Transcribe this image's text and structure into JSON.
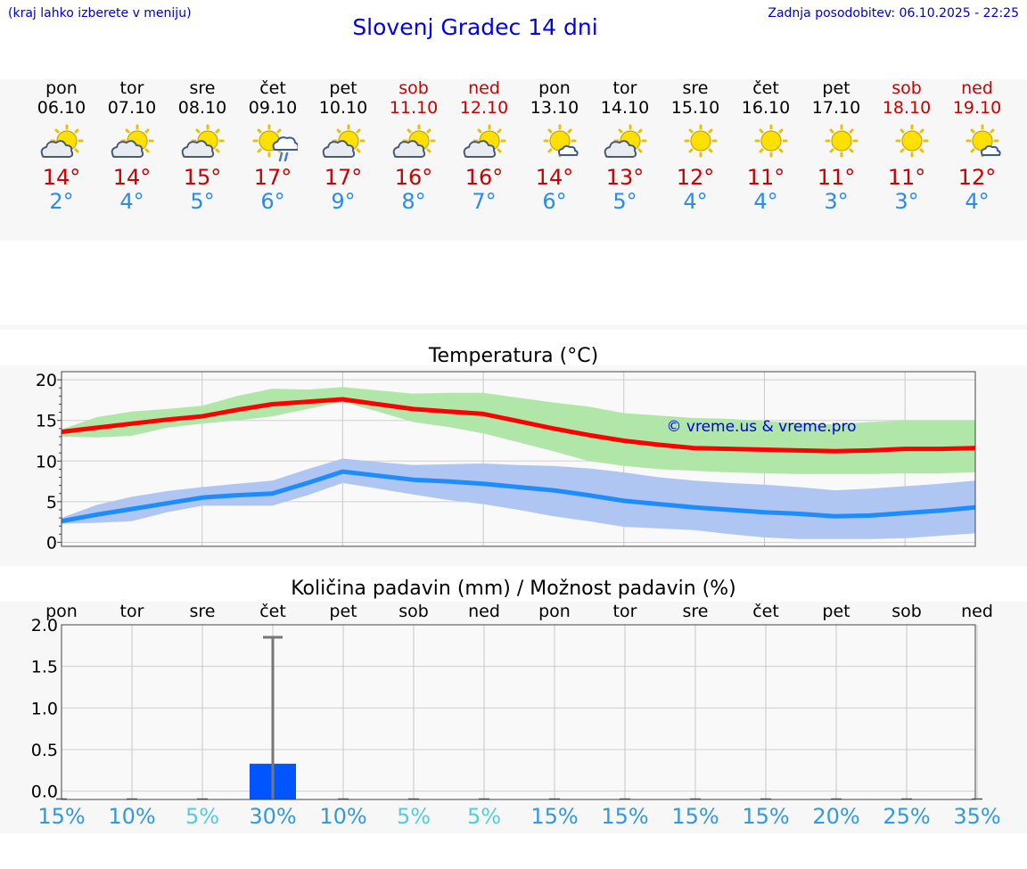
{
  "header": {
    "left_note": "(kraj lahko izberete v meniju)",
    "title": "Slovenj Gradec 14 dni",
    "updated": "Zadnja posodobitev: 06.10.2025 - 22:25"
  },
  "colors": {
    "weekend": "#cc0000",
    "max_temp": "#cc0000",
    "min_temp": "#2a8cea",
    "max_band": "#b0e6a8",
    "min_band": "#b0c6f2",
    "max_line": "#ff0000",
    "min_line": "#1e8cff",
    "rain_bar": "#0055ff"
  },
  "days": [
    {
      "name": "pon",
      "date": "06.10",
      "weekend": false,
      "icon": "partly-cloudy-icon",
      "max": "14°",
      "min": "2°"
    },
    {
      "name": "tor",
      "date": "07.10",
      "weekend": false,
      "icon": "partly-cloudy-icon",
      "max": "14°",
      "min": "4°"
    },
    {
      "name": "sre",
      "date": "08.10",
      "weekend": false,
      "icon": "partly-cloudy-icon",
      "max": "15°",
      "min": "5°"
    },
    {
      "name": "čet",
      "date": "09.10",
      "weekend": false,
      "icon": "sun-cloud-rain-icon",
      "max": "17°",
      "min": "6°"
    },
    {
      "name": "pet",
      "date": "10.10",
      "weekend": false,
      "icon": "partly-cloudy-icon",
      "max": "17°",
      "min": "9°"
    },
    {
      "name": "sob",
      "date": "11.10",
      "weekend": true,
      "icon": "partly-cloudy-icon",
      "max": "16°",
      "min": "8°"
    },
    {
      "name": "ned",
      "date": "12.10",
      "weekend": true,
      "icon": "partly-cloudy-icon",
      "max": "16°",
      "min": "7°"
    },
    {
      "name": "pon",
      "date": "13.10",
      "weekend": false,
      "icon": "sun-small-cloud-icon",
      "max": "14°",
      "min": "6°"
    },
    {
      "name": "tor",
      "date": "14.10",
      "weekend": false,
      "icon": "partly-cloudy-icon",
      "max": "13°",
      "min": "5°"
    },
    {
      "name": "sre",
      "date": "15.10",
      "weekend": false,
      "icon": "sun-icon",
      "max": "12°",
      "min": "4°"
    },
    {
      "name": "čet",
      "date": "16.10",
      "weekend": false,
      "icon": "sun-icon",
      "max": "11°",
      "min": "4°"
    },
    {
      "name": "pet",
      "date": "17.10",
      "weekend": false,
      "icon": "sun-icon",
      "max": "11°",
      "min": "3°"
    },
    {
      "name": "sob",
      "date": "18.10",
      "weekend": true,
      "icon": "sun-icon",
      "max": "11°",
      "min": "3°"
    },
    {
      "name": "ned",
      "date": "19.10",
      "weekend": true,
      "icon": "sun-small-cloud-icon",
      "max": "12°",
      "min": "4°"
    }
  ],
  "chart_data": [
    {
      "type": "line",
      "title": "Temperatura (°C)",
      "xlabel": "",
      "ylabel": "",
      "ylim": [
        -0.5,
        21
      ],
      "yticks": [
        0,
        5,
        10,
        15,
        20
      ],
      "x": [
        0,
        0.5,
        1,
        1.5,
        2,
        2.5,
        3,
        3.5,
        4,
        4.5,
        5,
        5.5,
        6,
        6.5,
        7,
        7.5,
        8,
        8.5,
        9,
        9.5,
        10,
        10.5,
        11,
        11.5,
        12,
        12.5,
        13
      ],
      "grid": true,
      "watermark": "© vreme.us & vreme.pro",
      "series": [
        {
          "values": [
            13.6,
            14.1,
            14.6,
            15.1,
            15.5,
            16.3,
            17.0,
            17.3,
            17.6,
            17.0,
            16.4,
            16.1,
            15.8,
            14.9,
            14.0,
            13.2,
            12.5,
            12.0,
            11.6,
            11.5,
            11.4,
            11.3,
            11.2,
            11.3,
            11.5,
            11.5,
            11.6
          ],
          "band_low": [
            13.0,
            12.9,
            13.1,
            14.1,
            14.6,
            15.0,
            15.5,
            16.4,
            17.3,
            16.1,
            14.8,
            14.2,
            13.4,
            12.3,
            11.2,
            10.0,
            9.4,
            9.0,
            8.8,
            8.6,
            8.5,
            8.4,
            8.4,
            8.4,
            8.5,
            8.5,
            8.6
          ],
          "band_high": [
            13.9,
            15.4,
            16.1,
            16.4,
            16.8,
            18.0,
            18.9,
            18.8,
            19.1,
            18.7,
            18.3,
            18.4,
            18.4,
            17.8,
            17.2,
            16.7,
            15.9,
            15.6,
            15.3,
            15.2,
            14.9,
            14.7,
            14.5,
            14.8,
            15.0,
            15.0,
            15.0
          ]
        },
        {
          "values": [
            2.6,
            3.4,
            4.1,
            4.8,
            5.5,
            5.8,
            6.0,
            7.3,
            8.7,
            8.2,
            7.7,
            7.5,
            7.2,
            6.8,
            6.4,
            5.8,
            5.1,
            4.7,
            4.3,
            4.0,
            3.7,
            3.5,
            3.2,
            3.3,
            3.6,
            3.9,
            4.3
          ],
          "band_low": [
            2.3,
            2.4,
            2.6,
            3.7,
            4.5,
            4.5,
            4.5,
            5.8,
            7.3,
            6.6,
            5.9,
            5.2,
            4.7,
            4.0,
            3.2,
            2.6,
            1.9,
            1.7,
            1.5,
            1.0,
            0.6,
            0.4,
            0.4,
            0.4,
            0.5,
            0.8,
            1.1
          ],
          "band_high": [
            3.0,
            4.6,
            5.6,
            6.3,
            6.8,
            7.2,
            7.6,
            9.0,
            10.3,
            9.9,
            9.5,
            9.6,
            9.7,
            9.5,
            9.4,
            9.1,
            8.6,
            8.0,
            7.6,
            7.3,
            7.1,
            6.8,
            6.4,
            6.6,
            6.9,
            7.2,
            7.6
          ]
        }
      ]
    },
    {
      "type": "bar",
      "title": "Količina padavin (mm) / Možnost padavin (%)",
      "xlabel": "",
      "ylabel": "",
      "ylim": [
        -0.1,
        2.0
      ],
      "yticks": [
        0.0,
        0.5,
        1.0,
        1.5,
        2.0
      ],
      "ytick_labels": [
        "0.0",
        "0.5",
        "1.0",
        "1.5",
        "2.0"
      ],
      "categories": [
        "pon",
        "tor",
        "sre",
        "čet",
        "pet",
        "sob",
        "ned",
        "pon",
        "tor",
        "sre",
        "čet",
        "pet",
        "sob",
        "ned"
      ],
      "values": [
        0,
        0,
        0,
        0.33,
        0,
        0,
        0,
        0,
        0,
        0,
        0,
        0,
        0,
        0
      ],
      "error_max": [
        0,
        0,
        0,
        1.85,
        0,
        0,
        0,
        0,
        0,
        0,
        0,
        0,
        0,
        0
      ],
      "grid": true,
      "probabilities": [
        "15%",
        "10%",
        "5%",
        "30%",
        "10%",
        "5%",
        "5%",
        "15%",
        "15%",
        "15%",
        "15%",
        "20%",
        "25%",
        "35%"
      ],
      "probability_colors": [
        "#3399dd",
        "#3399dd",
        "#55ccdd",
        "#3399dd",
        "#3399dd",
        "#55ccdd",
        "#55ccdd",
        "#3399dd",
        "#3399dd",
        "#3399dd",
        "#3399dd",
        "#3399dd",
        "#3399dd",
        "#3399dd"
      ]
    }
  ]
}
